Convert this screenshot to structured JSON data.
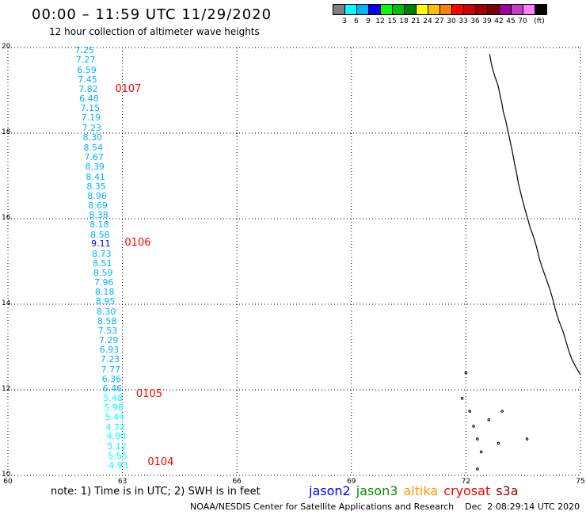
{
  "header": {
    "title": "00:00 – 11:59 UTC 11/29/2020",
    "subtitle": "12 hour collection of altimeter wave heights"
  },
  "legend": {
    "colors": [
      "#808080",
      "#00ffff",
      "#00b3ff",
      "#0000ff",
      "#00ff00",
      "#00c000",
      "#008000",
      "#ffff00",
      "#ffc000",
      "#ff8000",
      "#ff0000",
      "#d00000",
      "#a00000",
      "#800000",
      "#a000a0",
      "#c040c0",
      "#ff80ff",
      "#000000"
    ],
    "labels": [
      "3",
      "6",
      "9",
      "12",
      "15",
      "18",
      "21",
      "24",
      "27",
      "30",
      "33",
      "36",
      "39",
      "42",
      "45",
      "70",
      "(ft)"
    ]
  },
  "chart_data": {
    "type": "map",
    "xlim": [
      60,
      75
    ],
    "ylim": [
      10,
      20
    ],
    "x_ticks": [
      "60",
      "63",
      "66",
      "69",
      "72",
      "75"
    ],
    "y_ticks": [
      "10",
      "12",
      "14",
      "16",
      "18",
      "20"
    ],
    "observations": [
      {
        "lon": 62.0,
        "lat": 19.92,
        "swh": "7.25",
        "color": "#00b3ff"
      },
      {
        "lon": 62.03,
        "lat": 19.7,
        "swh": "7.27",
        "color": "#00b3ff"
      },
      {
        "lon": 62.06,
        "lat": 19.47,
        "swh": "6.59",
        "color": "#00b3ff"
      },
      {
        "lon": 62.08,
        "lat": 19.25,
        "swh": "7.45",
        "color": "#00b3ff"
      },
      {
        "lon": 62.1,
        "lat": 19.02,
        "swh": "7.82",
        "color": "#00b3ff"
      },
      {
        "lon": 62.12,
        "lat": 18.8,
        "swh": "6.48",
        "color": "#00b3ff"
      },
      {
        "lon": 62.15,
        "lat": 18.58,
        "swh": "7.15",
        "color": "#00b3ff"
      },
      {
        "lon": 62.17,
        "lat": 18.35,
        "swh": "7.19",
        "color": "#00b3ff"
      },
      {
        "lon": 62.19,
        "lat": 18.12,
        "swh": "7.23",
        "color": "#00b3ff"
      },
      {
        "lon": 62.21,
        "lat": 17.88,
        "swh": "8.30",
        "color": "#00b3ff"
      },
      {
        "lon": 62.23,
        "lat": 17.65,
        "swh": "8.54",
        "color": "#00b3ff"
      },
      {
        "lon": 62.25,
        "lat": 17.42,
        "swh": "7.67",
        "color": "#00b3ff"
      },
      {
        "lon": 62.27,
        "lat": 17.2,
        "swh": "8.39",
        "color": "#00b3ff"
      },
      {
        "lon": 62.29,
        "lat": 16.97,
        "swh": "8.41",
        "color": "#00b3ff"
      },
      {
        "lon": 62.31,
        "lat": 16.75,
        "swh": "8.35",
        "color": "#00b3ff"
      },
      {
        "lon": 62.33,
        "lat": 16.52,
        "swh": "8.96",
        "color": "#00b3ff"
      },
      {
        "lon": 62.35,
        "lat": 16.3,
        "swh": "8.69",
        "color": "#00b3ff"
      },
      {
        "lon": 62.37,
        "lat": 16.07,
        "swh": "8.38",
        "color": "#00b3ff"
      },
      {
        "lon": 62.39,
        "lat": 15.85,
        "swh": "8.18",
        "color": "#00b3ff"
      },
      {
        "lon": 62.41,
        "lat": 15.62,
        "swh": "8.58",
        "color": "#00b3ff"
      },
      {
        "lon": 62.43,
        "lat": 15.4,
        "swh": "9.11",
        "color": "#0000ff"
      },
      {
        "lon": 62.45,
        "lat": 15.17,
        "swh": "8.73",
        "color": "#00b3ff"
      },
      {
        "lon": 62.47,
        "lat": 14.95,
        "swh": "8.51",
        "color": "#00b3ff"
      },
      {
        "lon": 62.49,
        "lat": 14.72,
        "swh": "8.59",
        "color": "#00b3ff"
      },
      {
        "lon": 62.51,
        "lat": 14.5,
        "swh": "7.96",
        "color": "#00b3ff"
      },
      {
        "lon": 62.53,
        "lat": 14.27,
        "swh": "8.18",
        "color": "#00b3ff"
      },
      {
        "lon": 62.55,
        "lat": 14.05,
        "swh": "8.95",
        "color": "#00b3ff"
      },
      {
        "lon": 62.57,
        "lat": 13.82,
        "swh": "8.30",
        "color": "#00b3ff"
      },
      {
        "lon": 62.59,
        "lat": 13.6,
        "swh": "8.58",
        "color": "#00b3ff"
      },
      {
        "lon": 62.61,
        "lat": 13.37,
        "swh": "7.53",
        "color": "#00b3ff"
      },
      {
        "lon": 62.63,
        "lat": 13.15,
        "swh": "7.29",
        "color": "#00b3ff"
      },
      {
        "lon": 62.65,
        "lat": 12.92,
        "swh": "6.93",
        "color": "#00b3ff"
      },
      {
        "lon": 62.67,
        "lat": 12.7,
        "swh": "7.23",
        "color": "#00b3ff"
      },
      {
        "lon": 62.69,
        "lat": 12.47,
        "swh": "7.77",
        "color": "#00b3ff"
      },
      {
        "lon": 62.71,
        "lat": 12.25,
        "swh": "6.36",
        "color": "#00b3ff"
      },
      {
        "lon": 62.73,
        "lat": 12.02,
        "swh": "6.46",
        "color": "#00b3ff"
      },
      {
        "lon": 62.75,
        "lat": 11.8,
        "swh": "5.48",
        "color": "#00ffff"
      },
      {
        "lon": 62.77,
        "lat": 11.57,
        "swh": "5.98",
        "color": "#00ffff"
      },
      {
        "lon": 62.79,
        "lat": 11.35,
        "swh": "5.44",
        "color": "#00ffff"
      },
      {
        "lon": 62.81,
        "lat": 11.12,
        "swh": "4.72",
        "color": "#00ffff"
      },
      {
        "lon": 62.83,
        "lat": 10.9,
        "swh": "4.90",
        "color": "#00ffff"
      },
      {
        "lon": 62.85,
        "lat": 10.67,
        "swh": "5.12",
        "color": "#00ffff"
      },
      {
        "lon": 62.87,
        "lat": 10.45,
        "swh": "5.55",
        "color": "#00ffff"
      },
      {
        "lon": 62.89,
        "lat": 10.22,
        "swh": "4.93",
        "color": "#00ffff"
      }
    ],
    "pass_labels": [
      {
        "lon": 62.85,
        "lat": 19.02,
        "text": "0107"
      },
      {
        "lon": 63.1,
        "lat": 15.42,
        "text": "0106"
      },
      {
        "lon": 63.4,
        "lat": 11.88,
        "text": "0105"
      },
      {
        "lon": 63.7,
        "lat": 10.3,
        "text": "0104"
      }
    ],
    "coastline": [
      [
        72.62,
        19.85
      ],
      [
        72.66,
        19.65
      ],
      [
        72.7,
        19.5
      ],
      [
        72.76,
        19.32
      ],
      [
        72.84,
        19.12
      ],
      [
        72.88,
        18.95
      ],
      [
        72.94,
        18.7
      ],
      [
        72.98,
        18.5
      ],
      [
        73.04,
        18.3
      ],
      [
        73.1,
        18.05
      ],
      [
        73.16,
        17.8
      ],
      [
        73.22,
        17.55
      ],
      [
        73.27,
        17.3
      ],
      [
        73.33,
        17.05
      ],
      [
        73.38,
        16.8
      ],
      [
        73.45,
        16.55
      ],
      [
        73.52,
        16.3
      ],
      [
        73.6,
        16.05
      ],
      [
        73.68,
        15.8
      ],
      [
        73.78,
        15.55
      ],
      [
        73.86,
        15.3
      ],
      [
        73.93,
        15.05
      ],
      [
        74.0,
        14.85
      ],
      [
        74.1,
        14.6
      ],
      [
        74.2,
        14.35
      ],
      [
        74.28,
        14.1
      ],
      [
        74.35,
        13.85
      ],
      [
        74.44,
        13.6
      ],
      [
        74.55,
        13.35
      ],
      [
        74.63,
        13.1
      ],
      [
        74.7,
        12.9
      ],
      [
        74.78,
        12.7
      ],
      [
        74.87,
        12.55
      ],
      [
        75.0,
        12.35
      ]
    ],
    "islands": [
      [
        72.0,
        12.4
      ],
      [
        71.9,
        11.8
      ],
      [
        72.1,
        11.5
      ],
      [
        72.95,
        11.5
      ],
      [
        72.6,
        11.3
      ],
      [
        72.2,
        11.15
      ],
      [
        72.3,
        10.85
      ],
      [
        72.85,
        10.75
      ],
      [
        73.6,
        10.85
      ],
      [
        72.4,
        10.55
      ],
      [
        72.3,
        10.15
      ]
    ]
  },
  "footer": {
    "note": "note: 1) Time is in UTC; 2) SWH is in feet",
    "sats": [
      {
        "name": "jason2",
        "color": "#0000ff"
      },
      {
        "name": "jason3",
        "color": "#009000"
      },
      {
        "name": "altika",
        "color": "#ff9900"
      },
      {
        "name": "cryosat",
        "color": "#ff0000"
      },
      {
        "name": "s3a",
        "color": "#a00000"
      }
    ],
    "credit": "NOAA/NESDIS Center for Satellite Applications and Research    Dec  2 08:29:14 UTC 2020"
  }
}
